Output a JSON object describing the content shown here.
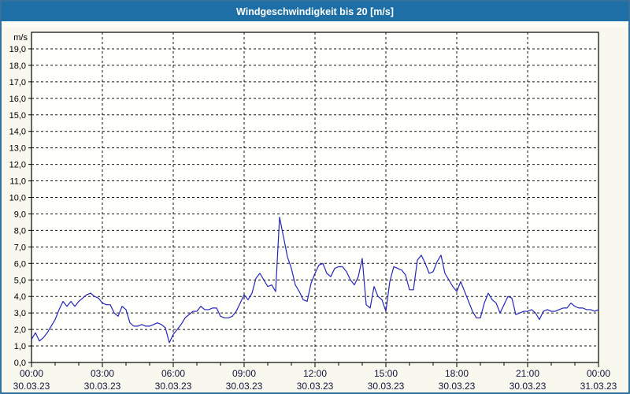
{
  "window": {
    "title": "Windgeschwindigkeit bis 20 [m/s]"
  },
  "chart_data": {
    "type": "line",
    "title": "Windgeschwindigkeit bis 20 [m/s]",
    "unit_label": "m/s",
    "ylabel": "m/s",
    "ylim": [
      0,
      20
    ],
    "y_tick_step": 1.0,
    "y_tick_labels": [
      "0,0",
      "1,0",
      "2,0",
      "3,0",
      "4,0",
      "5,0",
      "6,0",
      "7,0",
      "8,0",
      "9,0",
      "10,0",
      "11,0",
      "12,0",
      "13,0",
      "14,0",
      "15,0",
      "16,0",
      "17,0",
      "18,0",
      "19,0"
    ],
    "grid": "dashed",
    "legend": "none",
    "x_span_hours": 24,
    "x_major_tick_hours": 3,
    "x_minor_tick_hours": 1,
    "x_ticks": [
      {
        "time": "00:00",
        "date": "30.03.23"
      },
      {
        "time": "03:00",
        "date": "30.03.23"
      },
      {
        "time": "06:00",
        "date": "30.03.23"
      },
      {
        "time": "09:00",
        "date": "30.03.23"
      },
      {
        "time": "12:00",
        "date": "30.03.23"
      },
      {
        "time": "15:00",
        "date": "30.03.23"
      },
      {
        "time": "18:00",
        "date": "30.03.23"
      },
      {
        "time": "21:00",
        "date": "30.03.23"
      },
      {
        "time": "00:00",
        "date": "31.03.23"
      }
    ],
    "series": [
      {
        "name": "Windgeschwindigkeit",
        "unit": "m/s",
        "sample_interval_minutes": 10,
        "values": [
          1.4,
          1.8,
          1.3,
          1.5,
          1.8,
          2.2,
          2.6,
          3.2,
          3.7,
          3.4,
          3.7,
          3.4,
          3.7,
          3.9,
          4.1,
          4.2,
          4.0,
          3.9,
          3.6,
          3.5,
          3.5,
          3.0,
          2.8,
          3.4,
          3.2,
          2.4,
          2.2,
          2.2,
          2.3,
          2.2,
          2.2,
          2.3,
          2.4,
          2.3,
          2.1,
          1.2,
          1.7,
          2.0,
          2.3,
          2.7,
          2.9,
          3.1,
          3.1,
          3.4,
          3.2,
          3.2,
          3.3,
          3.3,
          2.8,
          2.7,
          2.7,
          2.8,
          3.1,
          3.6,
          4.1,
          3.8,
          4.2,
          5.1,
          5.4,
          5.0,
          4.6,
          4.7,
          4.3,
          8.8,
          7.6,
          6.4,
          5.7,
          4.7,
          4.3,
          3.8,
          3.7,
          4.8,
          5.4,
          5.9,
          6.0,
          5.4,
          5.2,
          5.7,
          5.8,
          5.8,
          5.5,
          5.0,
          4.7,
          5.2,
          6.3,
          3.5,
          3.3,
          4.6,
          4.0,
          3.8,
          3.1,
          4.9,
          5.8,
          5.7,
          5.6,
          5.3,
          4.4,
          4.4,
          6.2,
          6.5,
          6.0,
          5.4,
          5.5,
          6.1,
          6.5,
          5.4,
          5.0,
          4.6,
          4.3,
          4.9,
          4.3,
          3.7,
          3.1,
          2.7,
          2.7,
          3.6,
          4.2,
          3.8,
          3.6,
          3.0,
          3.5,
          4.0,
          3.9,
          2.9,
          3.0,
          3.1,
          3.1,
          3.2,
          3.0,
          2.6,
          3.1,
          3.2,
          3.1,
          3.1,
          3.2,
          3.3,
          3.3,
          3.6,
          3.4,
          3.3,
          3.3,
          3.2,
          3.2,
          3.1,
          3.2
        ]
      }
    ],
    "colors": {
      "line": "#2525b8",
      "titlebar_bg": "#1d6fa5",
      "titlebar_text": "#ffffff",
      "page_bg": "#f8f8ee",
      "plot_bg": "#fffffb",
      "plot_border": "#000000",
      "grid": "#141414",
      "y_label": "#000000",
      "x_label": "#14143c",
      "outer_border": "#34719f"
    }
  }
}
